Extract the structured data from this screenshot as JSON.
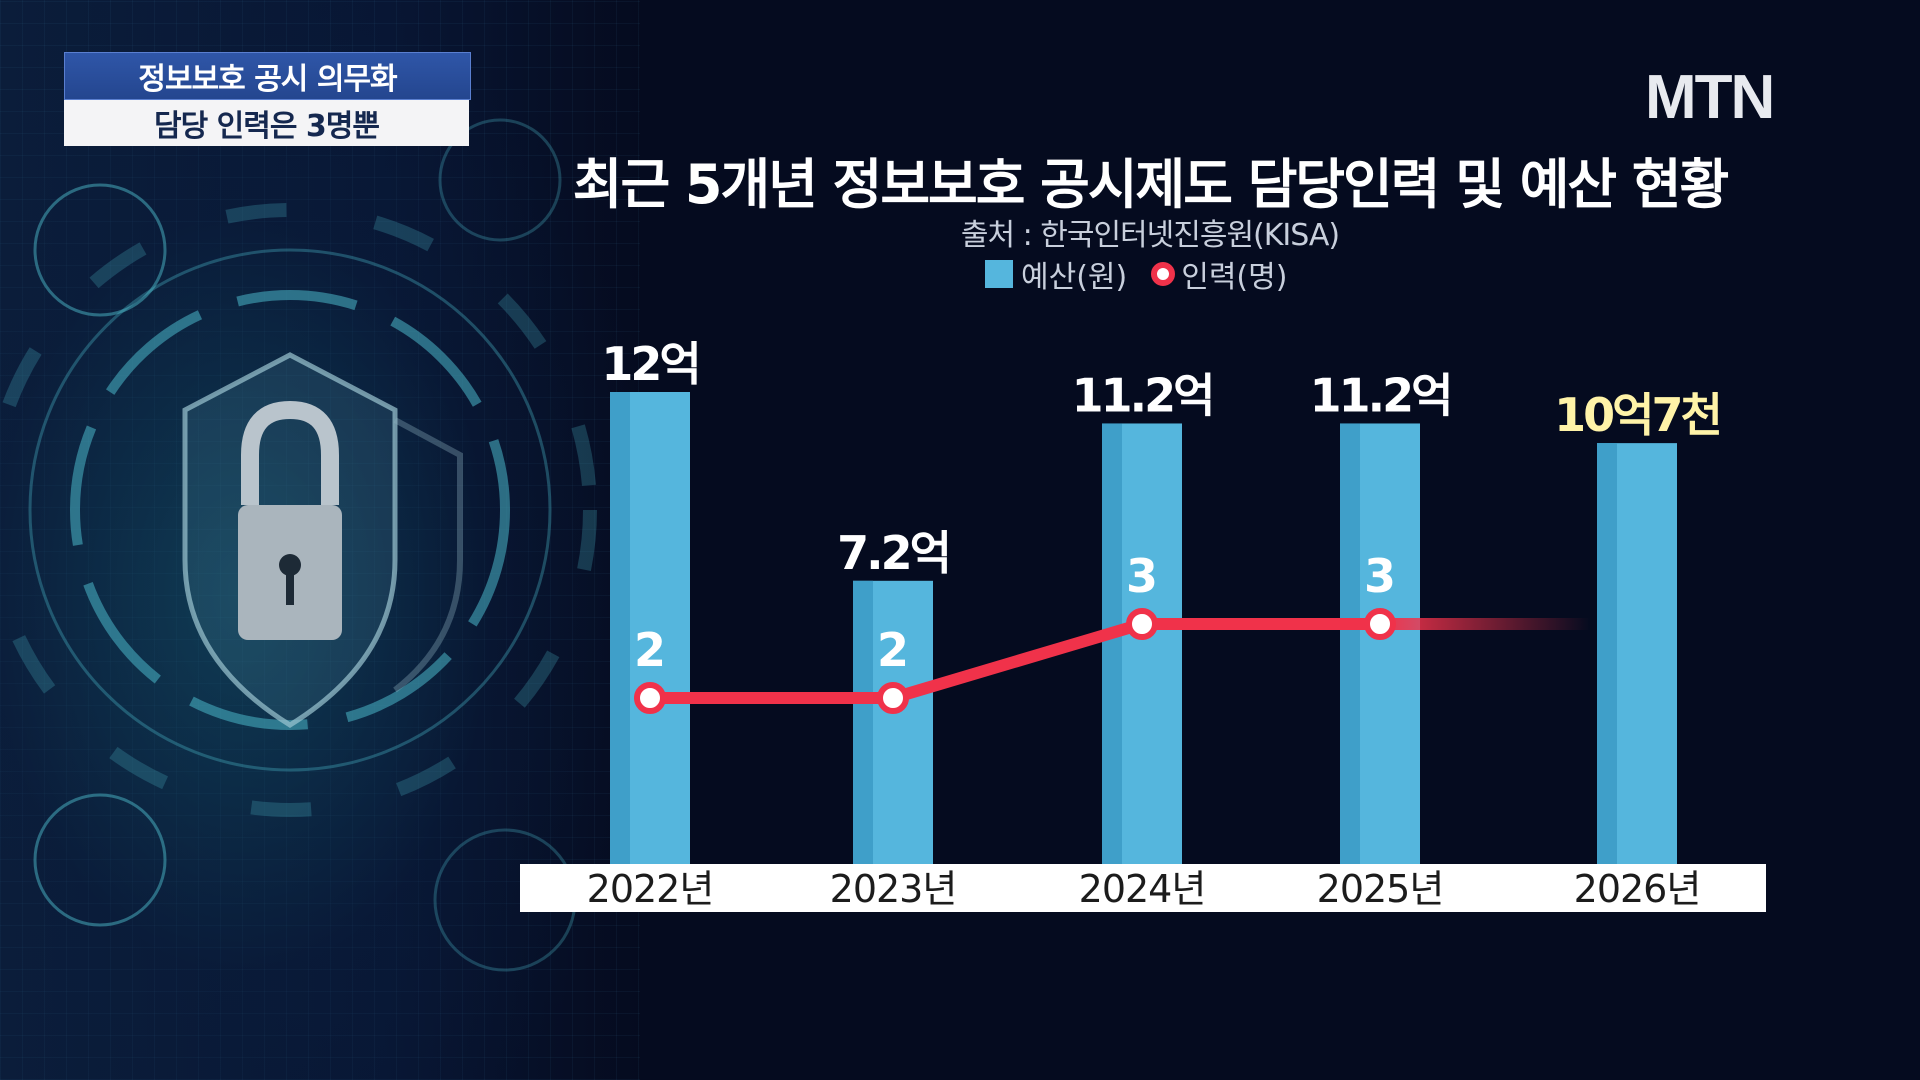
{
  "caption": {
    "line1": "정보보호 공시 의무화",
    "line2": "담당 인력은 3명뿐"
  },
  "logo": "MTN",
  "colors": {
    "bar": "#55b6dd",
    "bar_shade": "#3f9fc9",
    "line": "#f0324a",
    "highlight_label": "#fff3a8",
    "axis_band": "#ffffff"
  },
  "chart_data": {
    "type": "bar",
    "title": "최근 5개년 정보보호 공시제도 담당인력 및 예산 현황",
    "source": "출처 : 한국인터넷진흥원(KISA)",
    "legend": [
      "예산(원)",
      "인력(명)"
    ],
    "legend_position": "top-center",
    "categories": [
      "2022년",
      "2023년",
      "2024년",
      "2025년",
      "2026년"
    ],
    "series": [
      {
        "name": "예산(원)",
        "type": "bar",
        "values": [
          1200000000,
          720000000,
          1120000000,
          1120000000,
          1070000000
        ],
        "labels": [
          "12억",
          "7.2억",
          "11.2억",
          "11.2억",
          "10억7천"
        ]
      },
      {
        "name": "인력(명)",
        "type": "line",
        "values": [
          2,
          2,
          3,
          3,
          null
        ],
        "labels": [
          "2",
          "2",
          "3",
          "3",
          ""
        ]
      }
    ],
    "grid": false
  }
}
